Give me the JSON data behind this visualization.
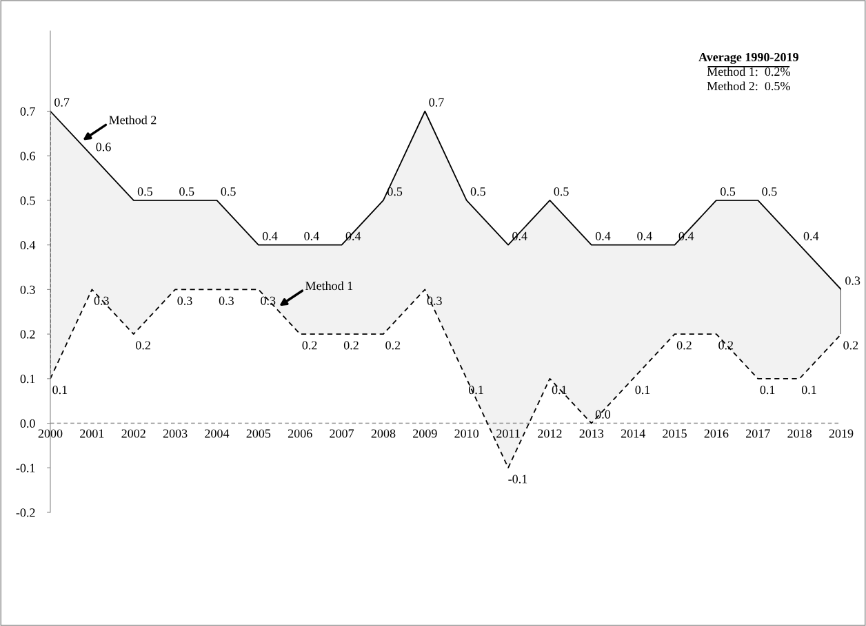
{
  "chart_data": {
    "type": "line",
    "categories": [
      "2000",
      "2001",
      "2002",
      "2003",
      "2004",
      "2005",
      "2006",
      "2007",
      "2008",
      "2009",
      "2010",
      "2011",
      "2012",
      "2013",
      "2014",
      "2015",
      "2016",
      "2017",
      "2018",
      "2019"
    ],
    "series": [
      {
        "name": "Method 2",
        "color": "#000000",
        "line_style": "solid",
        "values": [
          0.7,
          0.6,
          0.5,
          0.5,
          0.5,
          0.4,
          0.4,
          0.4,
          0.5,
          0.7,
          0.5,
          0.4,
          0.5,
          0.4,
          0.4,
          0.4,
          0.5,
          0.5,
          0.4,
          0.3
        ],
        "value_labels": [
          "0.7",
          "0.6",
          "0.5",
          "0.5",
          "0.5",
          "0.4",
          "0.4",
          "0.4",
          "0.5",
          "0.7",
          "0.5",
          "0.4",
          "0.5",
          "0.4",
          "0.4",
          "0.4",
          "0.5",
          "0.5",
          "0.4",
          "0.3"
        ],
        "lower": [
          0.1,
          0.3,
          0.2,
          0.3,
          0.3,
          0.3,
          0.2,
          0.2,
          0.2,
          0.3,
          0.1,
          -0.1,
          0.1,
          0.0,
          0.1,
          0.2,
          0.2,
          0.1,
          0.1,
          0.2
        ],
        "upper": [
          0.7,
          0.6,
          0.5,
          0.5,
          0.5,
          0.4,
          0.4,
          0.4,
          0.5,
          0.7,
          0.5,
          0.4,
          0.5,
          0.4,
          0.4,
          0.4,
          0.5,
          0.5,
          0.4,
          0.3
        ]
      },
      {
        "name": "Method 1",
        "color": "#000000",
        "line_style": "dashed",
        "values": [
          0.1,
          0.3,
          0.2,
          0.3,
          0.3,
          0.3,
          0.2,
          0.2,
          0.2,
          0.3,
          0.1,
          -0.1,
          0.1,
          0.0,
          0.1,
          0.2,
          0.2,
          0.1,
          0.1,
          0.2
        ],
        "value_labels": [
          "0.1",
          "0.3",
          "0.2",
          "0.3",
          "0.3",
          "0.3",
          "0.2",
          "0.2",
          "0.2",
          "0.3",
          "0.1",
          "-0.1",
          "0.1",
          "0.0",
          "0.1",
          "0.2",
          "0.2",
          "0.1",
          "0.1",
          "0.2"
        ]
      }
    ],
    "ylim": [
      -0.2,
      0.88
    ],
    "yticks": [
      -0.2,
      -0.1,
      {
        "value": 0,
        "label": "0.0"
      },
      0.1,
      0.2,
      0.3,
      0.4,
      0.5,
      0.6,
      0.7
    ],
    "grid": false,
    "legend": false,
    "marker": "none",
    "ref_lines": [
      {
        "axis": "y",
        "value": 0,
        "color": "#888888",
        "line_style": "dashed"
      }
    ],
    "annotations": [
      "Average 1990-2019",
      "Method 1:  0.2%",
      "Method 2:  0.5%"
    ]
  }
}
